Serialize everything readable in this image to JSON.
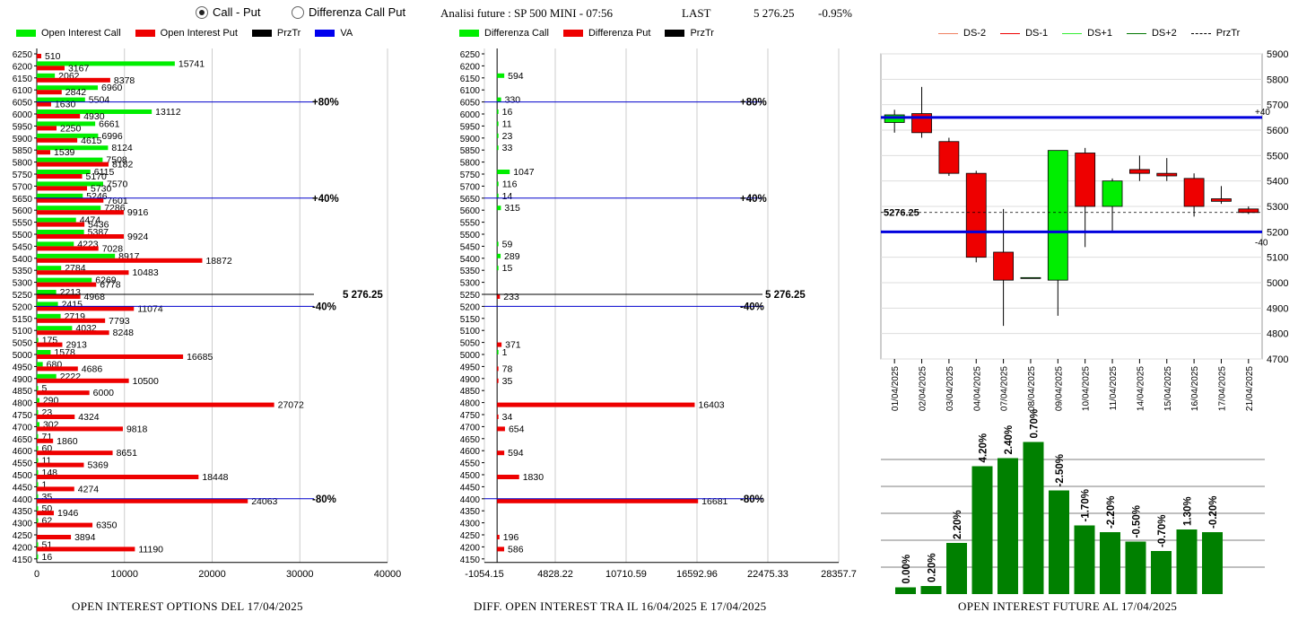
{
  "header": {
    "radio_call_put": "Call - Put",
    "radio_diff": "Differenza Call Put",
    "title": "Analisi future : SP 500 MINI - 07:56",
    "last_label": "LAST",
    "last_value": "5 276.25",
    "last_change": "-0.95%"
  },
  "legend1": [
    {
      "label": "Open Interest Call",
      "color": "#00ee00"
    },
    {
      "label": "Open Interest Put",
      "color": "#ee0000"
    },
    {
      "label": "PrzTr",
      "color": "#000000"
    },
    {
      "label": "VA",
      "color": "#0000ee"
    }
  ],
  "legend2": [
    {
      "label": "Differenza Call",
      "color": "#00ee00"
    },
    {
      "label": "Differenza Put",
      "color": "#ee0000"
    },
    {
      "label": "PrzTr",
      "color": "#000000"
    }
  ],
  "legend3": [
    {
      "label": "DS-2",
      "color": "#f08060",
      "dash": false
    },
    {
      "label": "DS-1",
      "color": "#ee0000",
      "dash": false
    },
    {
      "label": "DS+1",
      "color": "#33ee33",
      "dash": false
    },
    {
      "label": "DS+2",
      "color": "#007700",
      "dash": false
    },
    {
      "label": "PrzTr",
      "color": "#000000",
      "dash": true
    }
  ],
  "captions": {
    "c1": "OPEN INTEREST OPTIONS DEL 17/04/2025",
    "c2": "DIFF. OPEN INTEREST TRA IL 16/04/2025 E 17/04/2025",
    "c3": "OPEN INTEREST FUTURE AL 17/04/2025"
  },
  "chart_data": [
    {
      "type": "bar",
      "orientation": "horizontal",
      "categories": [
        "6250",
        "6200",
        "6150",
        "6100",
        "6050",
        "6000",
        "5950",
        "5900",
        "5850",
        "5800",
        "5750",
        "5700",
        "5650",
        "5600",
        "5550",
        "5500",
        "5450",
        "5400",
        "5350",
        "5300",
        "5250",
        "5200",
        "5150",
        "5100",
        "5050",
        "5000",
        "4950",
        "4900",
        "4850",
        "4800",
        "4750",
        "4700",
        "4650",
        "4600",
        "4550",
        "4500",
        "4450",
        "4400",
        "4350",
        "4300",
        "4250",
        "4200",
        "4150"
      ],
      "series": [
        {
          "name": "Open Interest Call",
          "values": [
            null,
            15741,
            2062,
            6960,
            5504,
            13112,
            6661,
            6996,
            8124,
            7508,
            6115,
            7570,
            5246,
            7286,
            4474,
            5387,
            4223,
            8917,
            2784,
            6269,
            2213,
            2415,
            2719,
            4032,
            175,
            1578,
            680,
            2222,
            5,
            290,
            23,
            302,
            71,
            60,
            11,
            148,
            1,
            35,
            50,
            62,
            null,
            51,
            16
          ]
        },
        {
          "name": "Open Interest Put",
          "values": [
            510,
            3167,
            8378,
            2842,
            1630,
            4930,
            2250,
            4615,
            1539,
            8182,
            5170,
            5730,
            7601,
            9916,
            5436,
            9924,
            7028,
            18872,
            10483,
            6778,
            4968,
            11074,
            7793,
            8248,
            2913,
            16685,
            4686,
            10500,
            6000,
            27072,
            4324,
            9818,
            1860,
            8651,
            5369,
            18448,
            4274,
            24063,
            1946,
            6350,
            3894,
            11190,
            null
          ]
        }
      ],
      "xticks": [
        "0",
        "10000",
        "20000",
        "30000",
        "40000"
      ],
      "xlim": [
        0,
        40000
      ],
      "lines": [
        {
          "label": "+80%",
          "at": "6050"
        },
        {
          "label": "+40%",
          "at": "5650"
        },
        {
          "label": "5 276.25",
          "at": "5250"
        },
        {
          "label": "-40%",
          "at": "5200"
        },
        {
          "label": "-80%",
          "at": "4400"
        }
      ]
    },
    {
      "type": "bar",
      "orientation": "horizontal",
      "categories": [
        "6250",
        "6200",
        "6150",
        "6100",
        "6050",
        "6000",
        "5950",
        "5900",
        "5850",
        "5800",
        "5750",
        "5700",
        "5650",
        "5600",
        "5550",
        "5500",
        "5450",
        "5400",
        "5350",
        "5300",
        "5250",
        "5200",
        "5150",
        "5100",
        "5050",
        "5000",
        "4950",
        "4900",
        "4850",
        "4800",
        "4750",
        "4700",
        "4650",
        "4600",
        "4550",
        "4500",
        "4450",
        "4400",
        "4350",
        "4300",
        "4250",
        "4200",
        "4150"
      ],
      "series": [
        {
          "name": "Differenza Call",
          "values": [
            null,
            null,
            594,
            null,
            330,
            16,
            11,
            23,
            33,
            null,
            1047,
            116,
            14,
            315,
            null,
            null,
            59,
            289,
            15,
            null,
            null,
            null,
            null,
            null,
            null,
            1,
            null,
            null,
            null,
            null,
            null,
            null,
            null,
            null,
            null,
            null,
            null,
            null,
            null,
            null,
            null,
            null,
            null
          ]
        },
        {
          "name": "Differenza Put",
          "values": [
            null,
            null,
            null,
            null,
            null,
            null,
            null,
            null,
            null,
            null,
            null,
            null,
            null,
            null,
            null,
            null,
            null,
            null,
            null,
            null,
            233,
            null,
            null,
            null,
            371,
            null,
            78,
            35,
            null,
            16403,
            34,
            654,
            null,
            594,
            null,
            1830,
            null,
            16681,
            null,
            null,
            196,
            586,
            null
          ]
        }
      ],
      "xticks": [
        "-1054.15",
        "4828.22",
        "10710.59",
        "16592.96",
        "22475.33",
        "28357.7"
      ],
      "xlim": [
        -1054.15,
        28357.7
      ],
      "lines": [
        {
          "label": "+80%",
          "at": "6050"
        },
        {
          "label": "+40%",
          "at": "5650"
        },
        {
          "label": "5 276.25",
          "at": "5250"
        },
        {
          "label": "-40%",
          "at": "5200"
        },
        {
          "label": "-80%",
          "at": "4400"
        }
      ]
    },
    {
      "type": "candlestick",
      "categories": [
        "01/04/2025",
        "02/04/2025",
        "03/04/2025",
        "04/04/2025",
        "07/04/2025",
        "08/04/2025",
        "09/04/2025",
        "10/04/2025",
        "11/04/2025",
        "14/04/2025",
        "15/04/2025",
        "16/04/2025",
        "17/04/2025",
        "21/04/2025"
      ],
      "ohlc": [
        [
          5630,
          5680,
          5590,
          5660
        ],
        [
          5665,
          5770,
          5570,
          5590
        ],
        [
          5555,
          5570,
          5420,
          5430
        ],
        [
          5430,
          5440,
          5080,
          5100
        ],
        [
          5120,
          5290,
          4830,
          5010
        ],
        [
          5020,
          5020,
          5020,
          5020
        ],
        [
          5010,
          5520,
          4870,
          5520
        ],
        [
          5510,
          5530,
          5140,
          5300
        ],
        [
          5300,
          5410,
          5200,
          5400
        ],
        [
          5445,
          5500,
          5400,
          5430
        ],
        [
          5430,
          5490,
          5400,
          5420
        ],
        [
          5410,
          5430,
          5260,
          5300
        ],
        [
          5330,
          5380,
          5310,
          5320
        ],
        [
          5290,
          5300,
          5270,
          5276
        ]
      ],
      "yticks": [
        "5900",
        "5800",
        "5700",
        "5600",
        "5500",
        "5400",
        "5300",
        "5200",
        "5100",
        "5000",
        "4900",
        "4800",
        "4700"
      ],
      "ylim": [
        4700,
        5900
      ],
      "hlines": [
        {
          "value": 5650,
          "label": "+40"
        },
        {
          "value": 5200,
          "label": "-40"
        }
      ],
      "price_label": "5276.25",
      "price": 5276.25
    },
    {
      "type": "bar",
      "categories": [
        "01/04/2025",
        "02/04/2025",
        "03/04/2025",
        "04/04/2025",
        "07/04/2025",
        "08/04/2025",
        "09/04/2025",
        "10/04/2025",
        "11/04/2025",
        "14/04/2025",
        "15/04/2025",
        "16/04/2025",
        "17/04/2025"
      ],
      "values": [
        0.5,
        0.6,
        3.8,
        9.5,
        10.1,
        11.3,
        7.7,
        5.1,
        4.6,
        3.9,
        3.2,
        4.8,
        4.6
      ],
      "labels": [
        "0.00%",
        "0.20%",
        "2.20%",
        "4.20%",
        "2.40%",
        "0.70%",
        "-2.50%",
        "-1.70%",
        "-2.20%",
        "-0.50%",
        "-0.70%",
        "1.30%",
        "-0.20%"
      ],
      "ylim": [
        0,
        12
      ]
    }
  ]
}
